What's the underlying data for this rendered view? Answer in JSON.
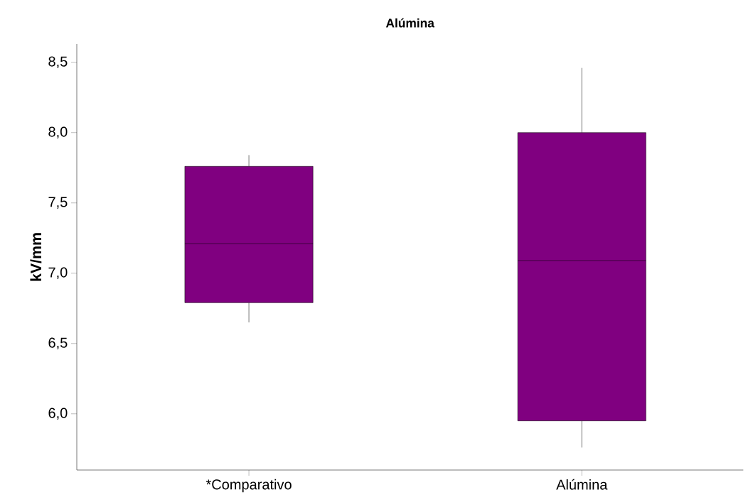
{
  "chart_data": {
    "type": "box",
    "title": "Alúmina",
    "ylabel": "kV/mm",
    "categories": [
      "*Comparativo",
      "Alúmina"
    ],
    "color": "#800080",
    "boxes": [
      {
        "low": 6.65,
        "q1": 6.79,
        "median": 7.21,
        "q3": 7.76,
        "high": 7.84
      },
      {
        "low": 5.76,
        "q1": 5.95,
        "median": 7.09,
        "q3": 8.0,
        "high": 8.46
      }
    ],
    "ylim": [
      5.6,
      8.63
    ],
    "yticks": [
      {
        "value": 6.0,
        "label": "6,0"
      },
      {
        "value": 6.5,
        "label": "6,5"
      },
      {
        "value": 7.0,
        "label": "7,0"
      },
      {
        "value": 7.5,
        "label": "7,5"
      },
      {
        "value": 8.0,
        "label": "8,0"
      },
      {
        "value": 8.5,
        "label": "8,5"
      }
    ],
    "grid": false
  }
}
